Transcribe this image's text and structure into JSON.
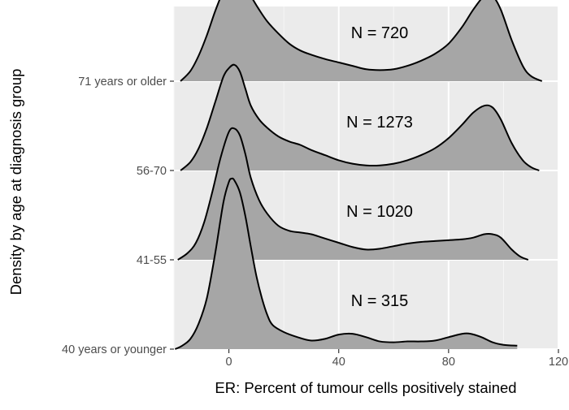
{
  "chart_data": {
    "type": "ridgeline",
    "title": "",
    "xlabel": "ER: Percent of tumour cells positively stained",
    "ylabel": "Density by age at diagnosis group",
    "xlim": [
      -20,
      120
    ],
    "x_ticks": [
      0,
      40,
      80,
      120
    ],
    "x_tick_labels": [
      "0",
      "40",
      "80",
      "120"
    ],
    "grid": true,
    "categories": [
      "40 years or younger",
      "41-55",
      "56-70",
      "71 years or older"
    ],
    "series": [
      {
        "name": "40 years or younger",
        "annotation": "N = 315",
        "points": [
          [
            -19.6,
            0.0
          ],
          [
            -17,
            0.02
          ],
          [
            -14,
            0.06
          ],
          [
            -11,
            0.15
          ],
          [
            -8,
            0.3
          ],
          [
            -5,
            0.56
          ],
          [
            -2,
            0.86
          ],
          [
            0,
            0.98
          ],
          [
            1,
            1.0
          ],
          [
            2,
            0.99
          ],
          [
            4,
            0.92
          ],
          [
            6,
            0.78
          ],
          [
            8,
            0.6
          ],
          [
            10,
            0.43
          ],
          [
            12,
            0.3
          ],
          [
            14,
            0.2
          ],
          [
            16,
            0.14
          ],
          [
            20,
            0.1
          ],
          [
            25,
            0.07
          ],
          [
            30,
            0.05
          ],
          [
            35,
            0.06
          ],
          [
            40,
            0.085
          ],
          [
            45,
            0.09
          ],
          [
            50,
            0.07
          ],
          [
            55,
            0.045
          ],
          [
            60,
            0.04
          ],
          [
            65,
            0.045
          ],
          [
            70,
            0.045
          ],
          [
            75,
            0.05
          ],
          [
            80,
            0.07
          ],
          [
            85,
            0.09
          ],
          [
            88,
            0.09
          ],
          [
            92,
            0.07
          ],
          [
            96,
            0.04
          ],
          [
            100,
            0.025
          ],
          [
            105,
            0.02
          ]
        ]
      },
      {
        "name": "41-55",
        "annotation": "N = 1020",
        "points": [
          [
            -18.6,
            0.0
          ],
          [
            -15,
            0.04
          ],
          [
            -12,
            0.1
          ],
          [
            -9,
            0.22
          ],
          [
            -6,
            0.4
          ],
          [
            -3,
            0.6
          ],
          [
            0,
            0.75
          ],
          [
            2,
            0.77
          ],
          [
            4,
            0.73
          ],
          [
            6,
            0.62
          ],
          [
            8,
            0.48
          ],
          [
            11,
            0.35
          ],
          [
            14,
            0.27
          ],
          [
            18,
            0.2
          ],
          [
            22,
            0.17
          ],
          [
            26,
            0.16
          ],
          [
            30,
            0.15
          ],
          [
            34,
            0.13
          ],
          [
            40,
            0.1
          ],
          [
            45,
            0.075
          ],
          [
            50,
            0.06
          ],
          [
            55,
            0.065
          ],
          [
            60,
            0.08
          ],
          [
            65,
            0.095
          ],
          [
            70,
            0.105
          ],
          [
            75,
            0.11
          ],
          [
            80,
            0.115
          ],
          [
            85,
            0.12
          ],
          [
            89,
            0.13
          ],
          [
            93,
            0.15
          ],
          [
            96,
            0.15
          ],
          [
            99,
            0.13
          ],
          [
            103,
            0.06
          ],
          [
            106,
            0.02
          ],
          [
            109,
            0.0
          ]
        ]
      },
      {
        "name": "56-70",
        "annotation": "N = 1273",
        "points": [
          [
            -17.6,
            0.0
          ],
          [
            -14,
            0.05
          ],
          [
            -11,
            0.13
          ],
          [
            -8,
            0.25
          ],
          [
            -5,
            0.4
          ],
          [
            -2,
            0.55
          ],
          [
            0,
            0.6
          ],
          [
            2,
            0.62
          ],
          [
            4,
            0.58
          ],
          [
            6,
            0.48
          ],
          [
            8,
            0.38
          ],
          [
            11,
            0.3
          ],
          [
            14,
            0.25
          ],
          [
            18,
            0.2
          ],
          [
            22,
            0.17
          ],
          [
            26,
            0.15
          ],
          [
            30,
            0.12
          ],
          [
            35,
            0.09
          ],
          [
            40,
            0.06
          ],
          [
            45,
            0.04
          ],
          [
            50,
            0.03
          ],
          [
            55,
            0.03
          ],
          [
            60,
            0.04
          ],
          [
            65,
            0.06
          ],
          [
            70,
            0.09
          ],
          [
            75,
            0.13
          ],
          [
            80,
            0.19
          ],
          [
            85,
            0.27
          ],
          [
            89,
            0.34
          ],
          [
            93,
            0.38
          ],
          [
            96,
            0.37
          ],
          [
            99,
            0.3
          ],
          [
            103,
            0.16
          ],
          [
            107,
            0.06
          ],
          [
            110,
            0.02
          ],
          [
            113,
            0.0
          ]
        ]
      },
      {
        "name": "71 years or older",
        "annotation": "N = 720",
        "points": [
          [
            -17.6,
            0.0
          ],
          [
            -14,
            0.06
          ],
          [
            -11,
            0.15
          ],
          [
            -8,
            0.27
          ],
          [
            -5,
            0.41
          ],
          [
            -2,
            0.53
          ],
          [
            0,
            0.58
          ],
          [
            2,
            0.6
          ],
          [
            4,
            0.59
          ],
          [
            6,
            0.56
          ],
          [
            8,
            0.5
          ],
          [
            11,
            0.42
          ],
          [
            14,
            0.35
          ],
          [
            18,
            0.28
          ],
          [
            22,
            0.22
          ],
          [
            26,
            0.18
          ],
          [
            30,
            0.155
          ],
          [
            35,
            0.13
          ],
          [
            40,
            0.11
          ],
          [
            45,
            0.09
          ],
          [
            50,
            0.07
          ],
          [
            55,
            0.065
          ],
          [
            60,
            0.07
          ],
          [
            65,
            0.09
          ],
          [
            70,
            0.12
          ],
          [
            75,
            0.16
          ],
          [
            80,
            0.22
          ],
          [
            85,
            0.32
          ],
          [
            89,
            0.42
          ],
          [
            93,
            0.5
          ],
          [
            96,
            0.5
          ],
          [
            99,
            0.42
          ],
          [
            103,
            0.24
          ],
          [
            107,
            0.09
          ],
          [
            110,
            0.03
          ],
          [
            114,
            0.0
          ]
        ]
      }
    ]
  }
}
